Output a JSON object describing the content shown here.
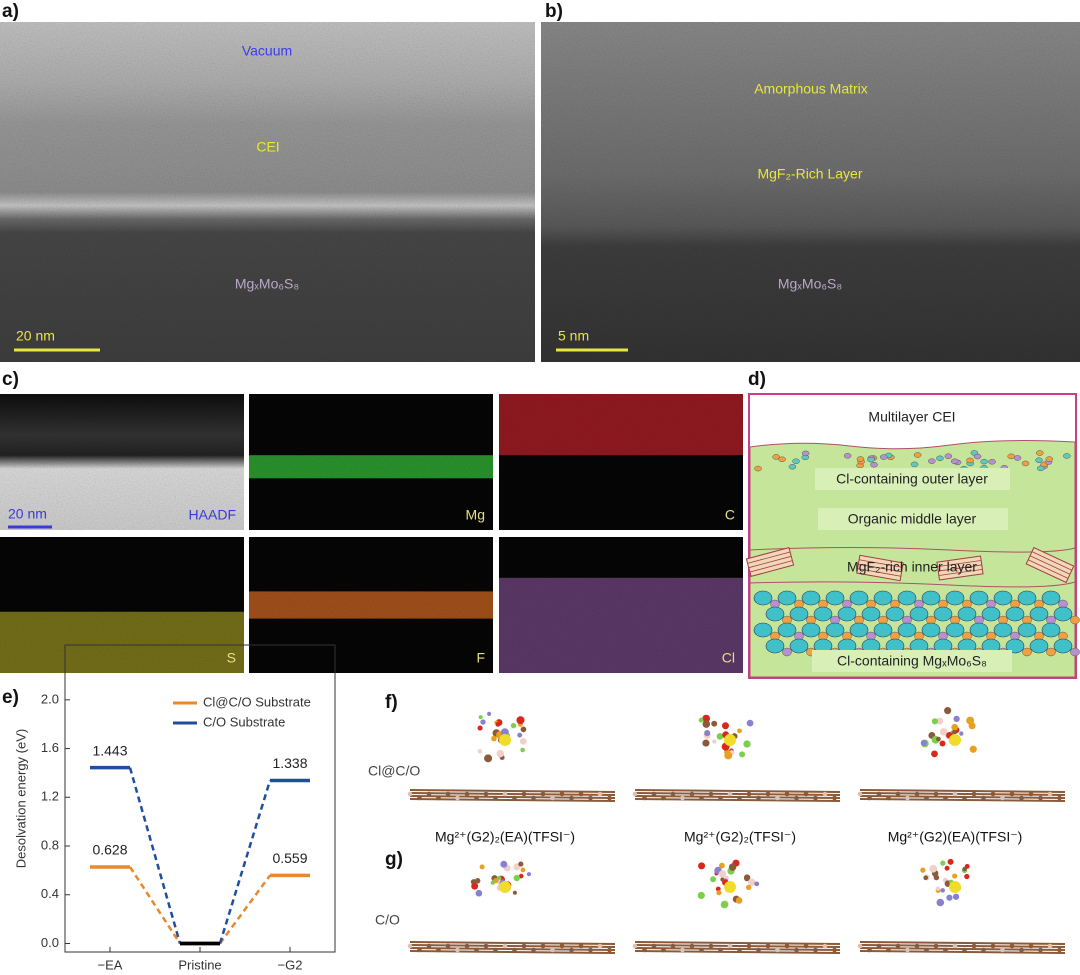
{
  "panel_a": {
    "label": "a)",
    "vacuum": "Vacuum",
    "cei": "CEI",
    "bulk": "MgₓMo₆S₈",
    "scale": "20 nm"
  },
  "panel_b": {
    "label": "b)",
    "matrix": "Amorphous Matrix",
    "layer": "MgF₂-Rich Layer",
    "bulk": "MgₓMo₆S₈",
    "scale": "5 nm"
  },
  "panel_c": {
    "label": "c)",
    "scale": "20 nm",
    "maps": [
      "HAADF",
      "Mg",
      "C",
      "S",
      "F",
      "Cl"
    ]
  },
  "panel_d": {
    "label": "d)",
    "title": "Multilayer CEI",
    "outer": "Cl-containing outer layer",
    "middle": "Organic middle layer",
    "inner": "MgF₂-rich inner layer",
    "bulk": "Cl-containing MgₓMo₆S₈"
  },
  "panel_f": {
    "label": "f)",
    "substrate": "Cl@C/O",
    "captions": [
      "Mg²⁺(G2)₂(EA)(TFSI⁻)",
      "Mg²⁺(G2)₂(TFSI⁻)",
      "Mg²⁺(G2)(EA)(TFSI⁻)"
    ]
  },
  "panel_g": {
    "label": "g)",
    "substrate": "C/O"
  },
  "chart_data": {
    "type": "energy_levels",
    "panel_label": "e)",
    "y_label": "Desolvation energy (eV)",
    "categories": [
      "−EA",
      "Pristine",
      "−G2"
    ],
    "series": [
      {
        "name": "Cl@C/O Substrate",
        "color": "#e8892b",
        "point_colors": [
          "#e8892b",
          "#000000",
          "#e8892b"
        ],
        "values": [
          0.628,
          0,
          0.559
        ],
        "value_labels": [
          "0.628",
          null,
          "0.559"
        ]
      },
      {
        "name": "C/O Substrate",
        "color": "#1f4f9c",
        "point_colors": [
          "#1f4f9c",
          "#000000",
          "#1f4f9c"
        ],
        "values": [
          1.443,
          0,
          1.338
        ],
        "value_labels": [
          "1.443",
          null,
          "1.338"
        ]
      }
    ],
    "ylim": [
      -0.07,
      2.45
    ],
    "yticks": [
      {
        "value": 0,
        "label": "0.0"
      },
      0.4,
      0.8,
      1.2,
      1.6,
      {
        "value": 2,
        "label": "2.0"
      }
    ],
    "legend": "upper right"
  }
}
